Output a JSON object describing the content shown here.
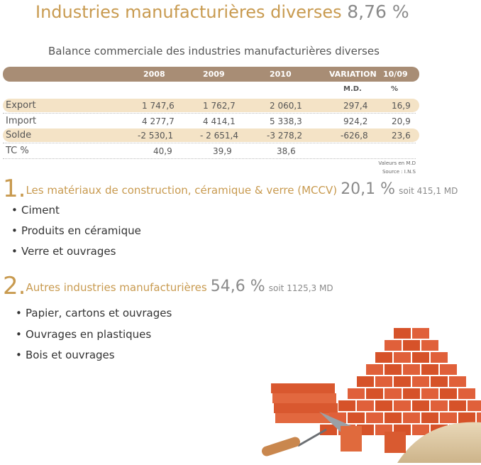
{
  "title": {
    "text": "Industries manufacturières diverses",
    "pct": "8,76 %"
  },
  "subtitle": "Balance commerciale des industries manufacturières diverses",
  "table": {
    "headers": [
      "2008",
      "2009",
      "2010",
      "VARIATION",
      "10/09"
    ],
    "subheaders": [
      "M.D.",
      "%"
    ],
    "rows": [
      {
        "label": "Export",
        "v": [
          "1 747,6",
          "1 762,7",
          "2 060,1",
          "297,4",
          "16,9"
        ]
      },
      {
        "label": "Import",
        "v": [
          "4 277,7",
          "4 414,1",
          "5 338,3",
          "924,2",
          "20,9"
        ]
      },
      {
        "label": "Solde",
        "v": [
          "-2 530,1",
          "- 2  651,4",
          "-3 278,2",
          "-626,8",
          "23,6"
        ]
      },
      {
        "label": "TC %",
        "v": [
          "40,9",
          "39,9",
          "38,6",
          "",
          ""
        ]
      }
    ],
    "note1": "Valeurs en M.D",
    "note2": "Source : I.N.S"
  },
  "sections": [
    {
      "num": "1.",
      "text": "Les matériaux de construction, céramique & verre (MCCV)",
      "pct": "20,1 %",
      "soit": "soit 415,1 MD",
      "items": [
        "Ciment",
        "Produits en céramique",
        "Verre et ouvrages"
      ]
    },
    {
      "num": "2.",
      "text": "Autres industries manufacturières",
      "pct": "54,6 %",
      "soit": "soit 1125,3 MD",
      "items": [
        "Papier, cartons et ouvrages",
        "Ouvrages en plastiques",
        "Bois et ouvrages"
      ]
    }
  ],
  "colors": {
    "accent": "#c89a4f",
    "header_band": "#a88d75",
    "row_band": "#f4e3c6",
    "brick": "#e0603a"
  },
  "image": {
    "icon": "brick-pile-illustration"
  }
}
